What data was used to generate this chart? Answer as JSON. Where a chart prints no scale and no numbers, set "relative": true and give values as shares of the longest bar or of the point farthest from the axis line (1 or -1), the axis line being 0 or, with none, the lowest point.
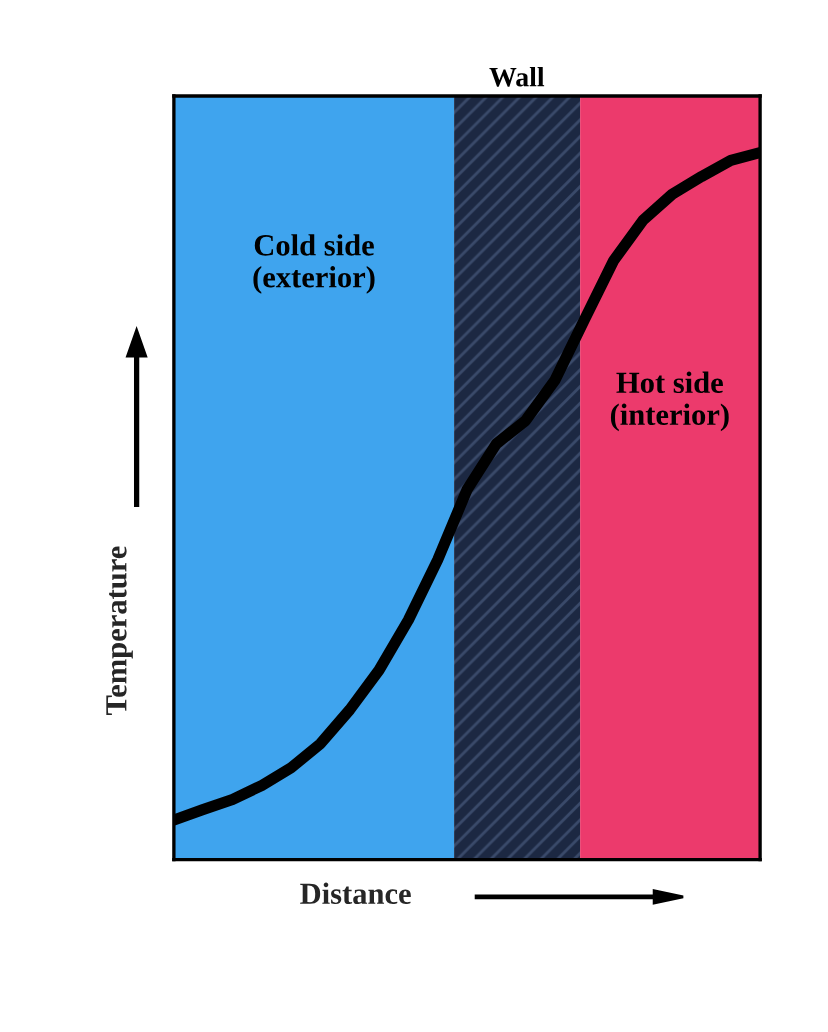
{
  "chart_data": {
    "type": "line",
    "relative": true,
    "xlabel": "Distance",
    "ylabel": "Temperature",
    "categories": [
      null,
      null,
      null,
      null,
      null,
      null,
      null,
      null,
      null,
      null,
      null,
      null,
      null,
      null,
      null,
      null,
      null,
      null,
      null,
      null,
      null
    ],
    "series": [
      {
        "color": "#000000",
        "values": [
          0.056,
          0.071,
          0.085,
          0.105,
          0.13,
          0.164,
          0.212,
          0.268,
          0.339,
          0.424,
          0.523,
          0.588,
          0.621,
          0.678,
          0.763,
          0.847,
          0.904,
          0.941,
          0.966,
          0.989,
          1.0
        ]
      }
    ],
    "annotations": [
      "Cold side\n(exterior)",
      "Wall",
      "Hot side\n(interior)"
    ]
  }
}
